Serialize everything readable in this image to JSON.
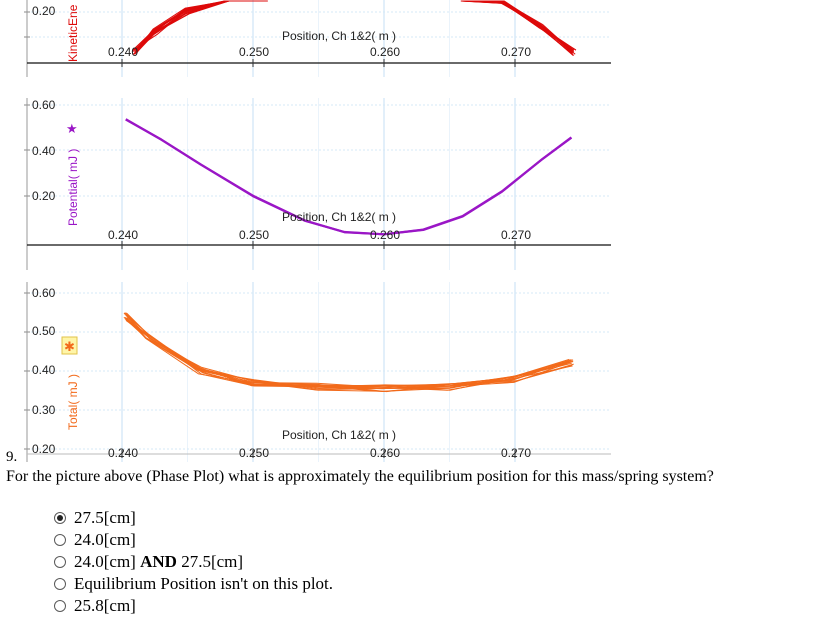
{
  "panels": {
    "kinetic": {
      "ylabel": "KineticEne",
      "yticks": [
        "0.20"
      ],
      "xlabel": "Position, Ch 1&2( m )",
      "xticks": [
        "0.240",
        "0.250",
        "0.260",
        "0.270"
      ],
      "color": "#dd0a0a"
    },
    "potential": {
      "ylabel": "Potential( mJ )",
      "symbol": "★",
      "yticks": [
        "0.60",
        "0.40",
        "0.20"
      ],
      "xlabel": "Position, Ch 1&2( m )",
      "xticks": [
        "0.240",
        "0.250",
        "0.260",
        "0.270"
      ],
      "color": "#9a16c6"
    },
    "total": {
      "ylabel": "Total( mJ )",
      "symbol": "✱",
      "yticks": [
        "0.60",
        "0.50",
        "0.40",
        "0.30",
        "0.20"
      ],
      "xlabel": "Position, Ch 1&2( m )",
      "xticks": [
        "0.240",
        "0.250",
        "0.260",
        "0.270"
      ],
      "color": "#f26a1b"
    }
  },
  "chart_data": [
    {
      "type": "line",
      "ylabel": "KineticEne",
      "xlabel": "Position, Ch 1&2( m )",
      "xlim": [
        0.2357,
        0.2745
      ],
      "series": [
        {
          "x": [
            0.241,
            0.2425,
            0.245,
            0.248,
            0.251
          ],
          "y": [
            0.12,
            0.16,
            0.2,
            0.23,
            0.25
          ]
        },
        {
          "x": [
            0.266,
            0.269,
            0.272,
            0.2745
          ],
          "y": [
            0.25,
            0.22,
            0.17,
            0.12
          ]
        }
      ]
    },
    {
      "type": "line",
      "ylabel": "Potential( mJ )",
      "xlabel": "Position, Ch 1&2( m )",
      "xlim": [
        0.2357,
        0.2745
      ],
      "series": [
        {
          "x": [
            0.2403,
            0.243,
            0.246,
            0.25,
            0.254,
            0.257,
            0.26,
            0.263,
            0.266,
            0.269,
            0.272,
            0.2743
          ],
          "y": [
            0.54,
            0.45,
            0.34,
            0.2,
            0.09,
            0.04,
            0.03,
            0.05,
            0.11,
            0.22,
            0.36,
            0.46
          ]
        }
      ]
    },
    {
      "type": "line",
      "ylabel": "Total( mJ )",
      "xlabel": "Position, Ch 1&2( m )",
      "xlim": [
        0.2357,
        0.2745
      ],
      "series": [
        {
          "x": [
            0.2403,
            0.242,
            0.246,
            0.25,
            0.255,
            0.26,
            0.265,
            0.27,
            0.2743
          ],
          "y": [
            0.54,
            0.49,
            0.4,
            0.37,
            0.36,
            0.355,
            0.36,
            0.38,
            0.42
          ]
        }
      ]
    }
  ],
  "question": {
    "number": "9.",
    "text": "For the picture above (Phase Plot) what is approximately the equilibrium position for this mass/spring system?",
    "options": [
      {
        "label": "27.5[cm]",
        "selected": true
      },
      {
        "label": "24.0[cm]",
        "selected": false
      },
      {
        "pre": "24.0[cm] ",
        "bold": "AND",
        "post": " 27.5[cm]",
        "selected": false
      },
      {
        "label": "Equilibrium Position isn't on this plot.",
        "selected": false
      },
      {
        "label": "25.8[cm]",
        "selected": false
      }
    ]
  }
}
